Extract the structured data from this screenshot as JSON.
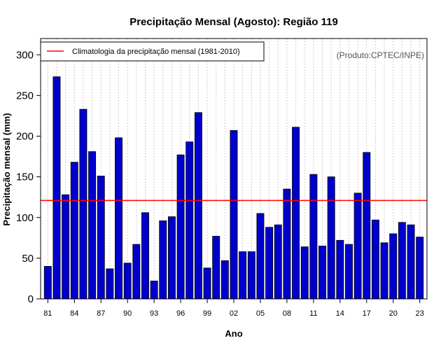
{
  "chart_data": {
    "type": "bar",
    "title": "Precipitação Mensal (Agosto): Região 119",
    "xlabel": "Ano",
    "ylabel": "Precipitação mensal (mm)",
    "ylim": [
      0,
      320
    ],
    "yticks": [
      0,
      50,
      100,
      150,
      200,
      250,
      300
    ],
    "xtick_labels": [
      "81",
      "84",
      "87",
      "90",
      "93",
      "96",
      "99",
      "02",
      "05",
      "08",
      "11",
      "14",
      "17",
      "20",
      "23"
    ],
    "categories": [
      "1981",
      "1982",
      "1983",
      "1984",
      "1985",
      "1986",
      "1987",
      "1988",
      "1989",
      "1990",
      "1991",
      "1992",
      "1993",
      "1994",
      "1995",
      "1996",
      "1997",
      "1998",
      "1999",
      "2000",
      "2001",
      "2002",
      "2003",
      "2004",
      "2005",
      "2006",
      "2007",
      "2008",
      "2009",
      "2010",
      "2011",
      "2012",
      "2013",
      "2014",
      "2015",
      "2016",
      "2017",
      "2018",
      "2019",
      "2020",
      "2021",
      "2022",
      "2023"
    ],
    "values": [
      40,
      273,
      128,
      168,
      233,
      181,
      151,
      37,
      198,
      44,
      67,
      106,
      22,
      96,
      101,
      177,
      193,
      229,
      38,
      77,
      47,
      207,
      58,
      58,
      105,
      88,
      91,
      135,
      211,
      64,
      153,
      65,
      150,
      72,
      67,
      130,
      180,
      97,
      69,
      80,
      94,
      91,
      76
    ],
    "reference_line": {
      "value": 121,
      "label": "Climatologia da precipitação mensal (1981-2010)"
    },
    "bar_color": "#0000CD",
    "line_color": "#FF0000",
    "credit": "(Produto:CPTEC/INPE)",
    "grid": "vertical dotted"
  }
}
